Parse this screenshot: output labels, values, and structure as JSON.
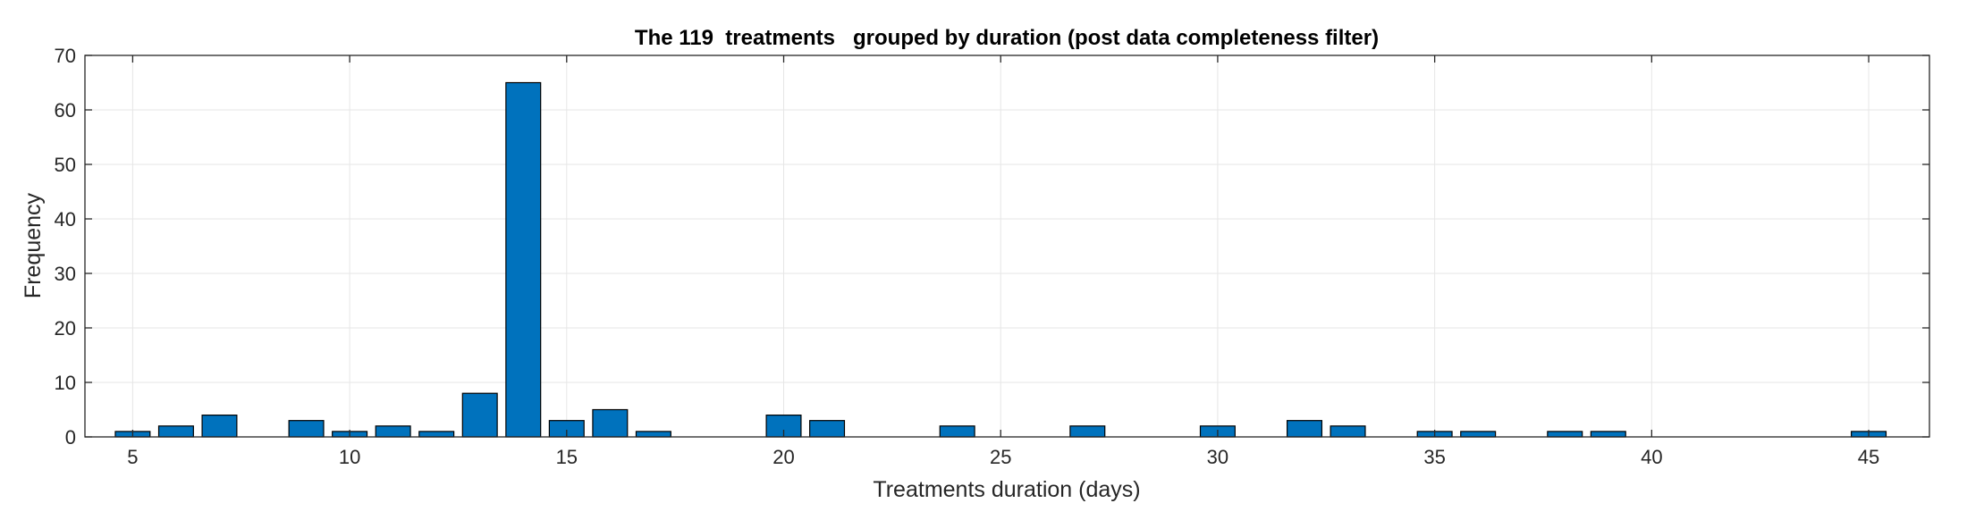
{
  "chart_data": {
    "type": "bar",
    "title": "The 119  treatments   grouped by duration (post data completeness filter)",
    "xlabel": "Treatments duration (days)",
    "ylabel": "Frequency",
    "xlim": [
      3.9,
      46.4
    ],
    "ylim": [
      0,
      70
    ],
    "xticks": [
      5,
      10,
      15,
      20,
      25,
      30,
      35,
      40,
      45
    ],
    "yticks": [
      0,
      10,
      20,
      30,
      40,
      50,
      60,
      70
    ],
    "grid": true,
    "bar_color": "#0072BD",
    "x": [
      5,
      6,
      7,
      9,
      10,
      11,
      12,
      13,
      14,
      15,
      16,
      17,
      20,
      21,
      24,
      27,
      30,
      32,
      33,
      35,
      36,
      38,
      39,
      45
    ],
    "values": [
      1,
      2,
      4,
      3,
      1,
      2,
      1,
      8,
      65,
      3,
      5,
      1,
      4,
      3,
      2,
      2,
      2,
      3,
      2,
      1,
      1,
      1,
      1,
      1
    ]
  }
}
